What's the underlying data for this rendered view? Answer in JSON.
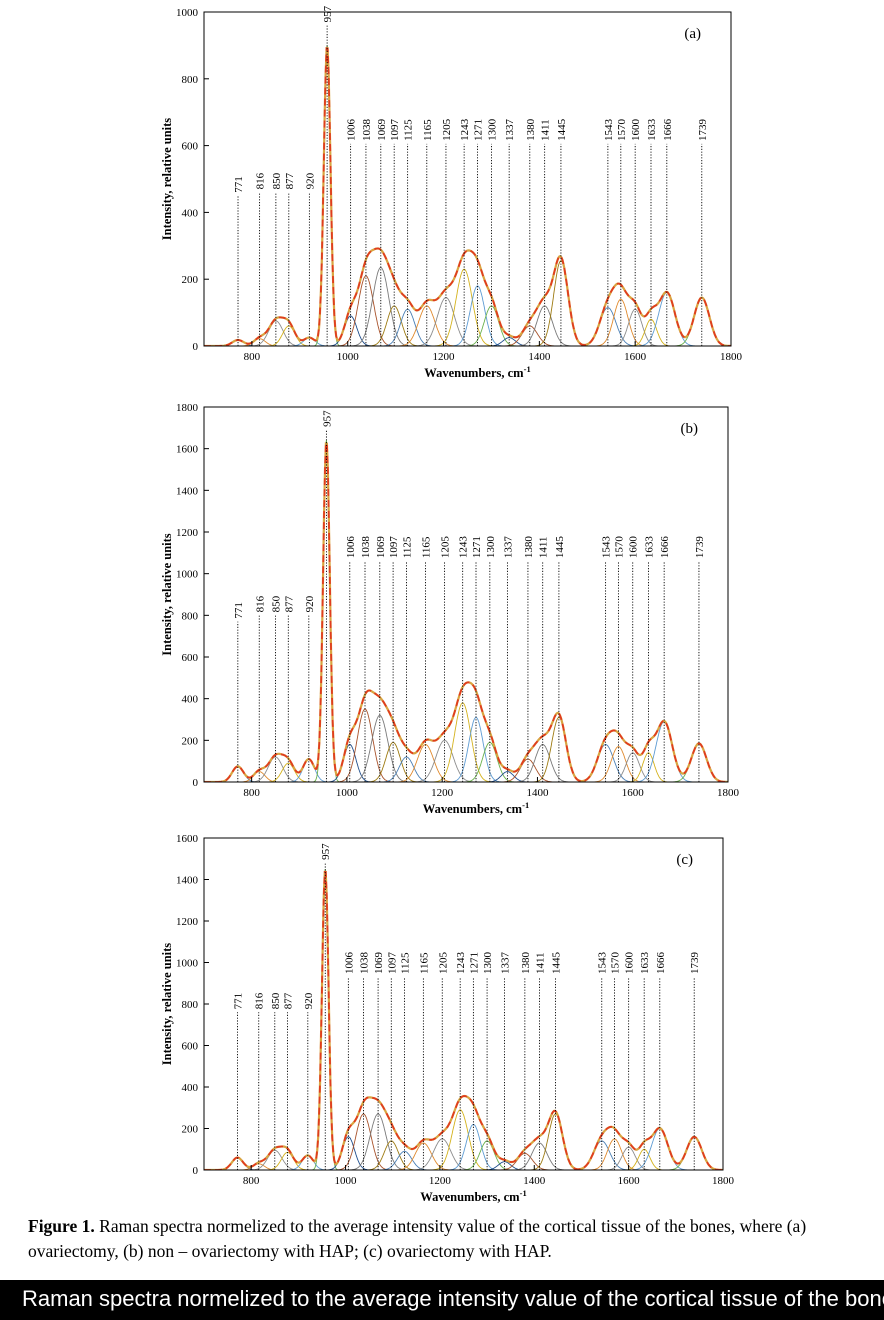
{
  "chart_data": [
    {
      "type": "line",
      "panel_label": "(a)",
      "xlabel": "Wavenumbers, cm",
      "xlabel_sup": "-1",
      "ylabel": "Intensity, relative units",
      "xlim": [
        700,
        1800
      ],
      "ylim": [
        0,
        1000
      ],
      "x_ticks": [
        800,
        1000,
        1200,
        1400,
        1600,
        1800
      ],
      "y_ticks": [
        0,
        200,
        400,
        600,
        800,
        1000
      ],
      "grid": false,
      "peaks": [
        {
          "position": 771,
          "intensity": 18,
          "width": 12,
          "label_height": 450
        },
        {
          "position": 816,
          "intensity": 22,
          "width": 12,
          "label_height": 460
        },
        {
          "position": 850,
          "intensity": 75,
          "width": 15,
          "label_height": 460
        },
        {
          "position": 877,
          "intensity": 60,
          "width": 13,
          "label_height": 460
        },
        {
          "position": 920,
          "intensity": 25,
          "width": 12,
          "label_height": 460
        },
        {
          "position": 957,
          "intensity": 900,
          "width": 7,
          "label_height": 960
        },
        {
          "position": 1006,
          "intensity": 90,
          "width": 13,
          "label_height": 605
        },
        {
          "position": 1038,
          "intensity": 210,
          "width": 16,
          "label_height": 605
        },
        {
          "position": 1069,
          "intensity": 235,
          "width": 17,
          "label_height": 605
        },
        {
          "position": 1097,
          "intensity": 120,
          "width": 15,
          "label_height": 605
        },
        {
          "position": 1125,
          "intensity": 110,
          "width": 15,
          "label_height": 605
        },
        {
          "position": 1165,
          "intensity": 120,
          "width": 17,
          "label_height": 605
        },
        {
          "position": 1205,
          "intensity": 145,
          "width": 18,
          "label_height": 605
        },
        {
          "position": 1243,
          "intensity": 230,
          "width": 17,
          "label_height": 605
        },
        {
          "position": 1271,
          "intensity": 180,
          "width": 15,
          "label_height": 605
        },
        {
          "position": 1300,
          "intensity": 120,
          "width": 15,
          "label_height": 605
        },
        {
          "position": 1337,
          "intensity": 25,
          "width": 13,
          "label_height": 605
        },
        {
          "position": 1380,
          "intensity": 60,
          "width": 16,
          "label_height": 605
        },
        {
          "position": 1411,
          "intensity": 120,
          "width": 16,
          "label_height": 605
        },
        {
          "position": 1445,
          "intensity": 255,
          "width": 15,
          "label_height": 605
        },
        {
          "position": 1543,
          "intensity": 115,
          "width": 17,
          "label_height": 605
        },
        {
          "position": 1570,
          "intensity": 140,
          "width": 15,
          "label_height": 605
        },
        {
          "position": 1600,
          "intensity": 110,
          "width": 14,
          "label_height": 605
        },
        {
          "position": 1633,
          "intensity": 80,
          "width": 12,
          "label_height": 605
        },
        {
          "position": 1666,
          "intensity": 160,
          "width": 17,
          "label_height": 605
        },
        {
          "position": 1739,
          "intensity": 145,
          "width": 16,
          "label_height": 605
        }
      ]
    },
    {
      "type": "line",
      "panel_label": "(b)",
      "xlabel": "Wavenumbers, cm",
      "xlabel_sup": "-1",
      "ylabel": "Intensity, relative units",
      "xlim": [
        700,
        1800
      ],
      "ylim": [
        0,
        1800
      ],
      "x_ticks": [
        800,
        1000,
        1200,
        1400,
        1600,
        1800
      ],
      "y_ticks": [
        0,
        200,
        400,
        600,
        800,
        1000,
        1200,
        1400,
        1600,
        1800
      ],
      "grid": false,
      "peaks": [
        {
          "position": 771,
          "intensity": 75,
          "width": 12,
          "label_height": 770
        },
        {
          "position": 816,
          "intensity": 50,
          "width": 12,
          "label_height": 800
        },
        {
          "position": 850,
          "intensity": 120,
          "width": 15,
          "label_height": 800
        },
        {
          "position": 877,
          "intensity": 90,
          "width": 13,
          "label_height": 800
        },
        {
          "position": 920,
          "intensity": 110,
          "width": 12,
          "label_height": 800
        },
        {
          "position": 957,
          "intensity": 1640,
          "width": 7,
          "label_height": 1690
        },
        {
          "position": 1006,
          "intensity": 180,
          "width": 13,
          "label_height": 1060
        },
        {
          "position": 1038,
          "intensity": 350,
          "width": 16,
          "label_height": 1060
        },
        {
          "position": 1069,
          "intensity": 320,
          "width": 17,
          "label_height": 1060
        },
        {
          "position": 1097,
          "intensity": 190,
          "width": 15,
          "label_height": 1060
        },
        {
          "position": 1125,
          "intensity": 120,
          "width": 15,
          "label_height": 1060
        },
        {
          "position": 1165,
          "intensity": 180,
          "width": 17,
          "label_height": 1060
        },
        {
          "position": 1205,
          "intensity": 200,
          "width": 18,
          "label_height": 1060
        },
        {
          "position": 1243,
          "intensity": 380,
          "width": 17,
          "label_height": 1060
        },
        {
          "position": 1271,
          "intensity": 310,
          "width": 15,
          "label_height": 1060
        },
        {
          "position": 1300,
          "intensity": 190,
          "width": 15,
          "label_height": 1060
        },
        {
          "position": 1337,
          "intensity": 50,
          "width": 13,
          "label_height": 1060
        },
        {
          "position": 1380,
          "intensity": 110,
          "width": 16,
          "label_height": 1060
        },
        {
          "position": 1411,
          "intensity": 180,
          "width": 16,
          "label_height": 1060
        },
        {
          "position": 1445,
          "intensity": 310,
          "width": 15,
          "label_height": 1060
        },
        {
          "position": 1543,
          "intensity": 180,
          "width": 17,
          "label_height": 1060
        },
        {
          "position": 1570,
          "intensity": 170,
          "width": 15,
          "label_height": 1060
        },
        {
          "position": 1600,
          "intensity": 140,
          "width": 14,
          "label_height": 1060
        },
        {
          "position": 1633,
          "intensity": 140,
          "width": 12,
          "label_height": 1060
        },
        {
          "position": 1666,
          "intensity": 290,
          "width": 17,
          "label_height": 1060
        },
        {
          "position": 1739,
          "intensity": 185,
          "width": 16,
          "label_height": 1060
        }
      ]
    },
    {
      "type": "line",
      "panel_label": "(c)",
      "xlabel": "Wavenumbers, cm",
      "xlabel_sup": "-1",
      "ylabel": "Intensity, relative units",
      "xlim": [
        700,
        1800
      ],
      "ylim": [
        0,
        1600
      ],
      "x_ticks": [
        800,
        1000,
        1200,
        1400,
        1600,
        1800
      ],
      "y_ticks": [
        0,
        200,
        400,
        600,
        800,
        1000,
        1200,
        1400,
        1600
      ],
      "grid": false,
      "peaks": [
        {
          "position": 771,
          "intensity": 60,
          "width": 12,
          "label_height": 760
        },
        {
          "position": 816,
          "intensity": 30,
          "width": 12,
          "label_height": 760
        },
        {
          "position": 850,
          "intensity": 95,
          "width": 15,
          "label_height": 760
        },
        {
          "position": 877,
          "intensity": 85,
          "width": 13,
          "label_height": 760
        },
        {
          "position": 920,
          "intensity": 70,
          "width": 12,
          "label_height": 760
        },
        {
          "position": 957,
          "intensity": 1450,
          "width": 7,
          "label_height": 1480
        },
        {
          "position": 1006,
          "intensity": 160,
          "width": 13,
          "label_height": 930
        },
        {
          "position": 1038,
          "intensity": 270,
          "width": 16,
          "label_height": 930
        },
        {
          "position": 1069,
          "intensity": 270,
          "width": 17,
          "label_height": 930
        },
        {
          "position": 1097,
          "intensity": 140,
          "width": 15,
          "label_height": 930
        },
        {
          "position": 1125,
          "intensity": 90,
          "width": 15,
          "label_height": 930
        },
        {
          "position": 1165,
          "intensity": 130,
          "width": 17,
          "label_height": 930
        },
        {
          "position": 1205,
          "intensity": 150,
          "width": 18,
          "label_height": 930
        },
        {
          "position": 1243,
          "intensity": 290,
          "width": 17,
          "label_height": 930
        },
        {
          "position": 1271,
          "intensity": 220,
          "width": 15,
          "label_height": 930
        },
        {
          "position": 1300,
          "intensity": 140,
          "width": 15,
          "label_height": 930
        },
        {
          "position": 1337,
          "intensity": 40,
          "width": 13,
          "label_height": 930
        },
        {
          "position": 1380,
          "intensity": 80,
          "width": 16,
          "label_height": 930
        },
        {
          "position": 1411,
          "intensity": 130,
          "width": 16,
          "label_height": 930
        },
        {
          "position": 1445,
          "intensity": 270,
          "width": 15,
          "label_height": 930
        },
        {
          "position": 1543,
          "intensity": 140,
          "width": 17,
          "label_height": 930
        },
        {
          "position": 1570,
          "intensity": 150,
          "width": 15,
          "label_height": 930
        },
        {
          "position": 1600,
          "intensity": 110,
          "width": 14,
          "label_height": 930
        },
        {
          "position": 1633,
          "intensity": 100,
          "width": 12,
          "label_height": 930
        },
        {
          "position": 1666,
          "intensity": 200,
          "width": 17,
          "label_height": 930
        },
        {
          "position": 1739,
          "intensity": 160,
          "width": 16,
          "label_height": 930
        }
      ]
    }
  ],
  "component_colors": [
    "#4a7fb5",
    "#e08a2e",
    "#8c8c8c",
    "#d4b21c",
    "#5d9bd3",
    "#6ab04c",
    "#1f4e8c",
    "#a8522a",
    "#7a7a7a",
    "#9e7b12"
  ],
  "colors": {
    "envelope_smooth": "#d9a441",
    "envelope_dashed": "#e03c1f",
    "axes": "#000000",
    "marker_lines": "#000000"
  },
  "caption": {
    "label": "Figure 1.",
    "text": " Raman spectra normelized to the average intensity value of the cortical tissue of the bones, where (a) ovariectomy, (b) non – ovariectomy with HAP; (c) ovariectomy with HAP."
  },
  "banner_text": "Raman spectra normelized to the average intensity value of the cortical tissue of the bones, where (a) ovariectomy, (b) non – ovariectomy with HAP; (c) ovariectomy with HAP."
}
